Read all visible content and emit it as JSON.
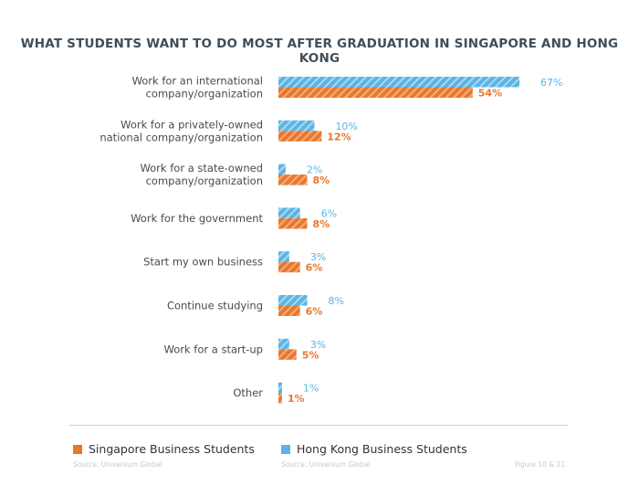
{
  "chart_data": {
    "type": "bar",
    "orientation": "horizontal",
    "title": "WHAT STUDENTS WANT TO DO MOST AFTER GRADUATION IN SINGAPORE AND HONG KONG",
    "categories": [
      [
        "Work for an international",
        "company/organization"
      ],
      [
        "Work for a privately-owned",
        "national company/organization"
      ],
      [
        "Work for a state-owned",
        "company/organization"
      ],
      [
        "Work for the government"
      ],
      [
        "Start my own business"
      ],
      [
        "Continue studying"
      ],
      [
        "Work for a start-up"
      ],
      [
        "Other"
      ]
    ],
    "series": [
      {
        "name": "Hong Kong Business Students",
        "color": "#5ab4e5",
        "values": [
          67,
          10,
          2,
          6,
          3,
          8,
          3,
          1
        ],
        "labels": [
          "67%",
          "10%",
          "2%",
          "6%",
          "3%",
          "8%",
          "3%",
          "1%"
        ]
      },
      {
        "name": "Singapore Business Students",
        "color": "#e8772e",
        "values": [
          54,
          12,
          8,
          8,
          6,
          6,
          5,
          1
        ],
        "labels": [
          "54%",
          "12%",
          "8%",
          "8%",
          "6%",
          "6%",
          "5%",
          "1%"
        ]
      }
    ],
    "xlim": [
      0,
      67
    ],
    "grid": false,
    "legend_position": "bottom"
  },
  "legend": {
    "singapore": "Singapore Business Students",
    "hongkong": "Hong Kong Business Students"
  },
  "footer": {
    "source_left": "Source: Universum Global",
    "source_mid": "Source: Universum Global",
    "figure": "Figure 10 & 11"
  }
}
